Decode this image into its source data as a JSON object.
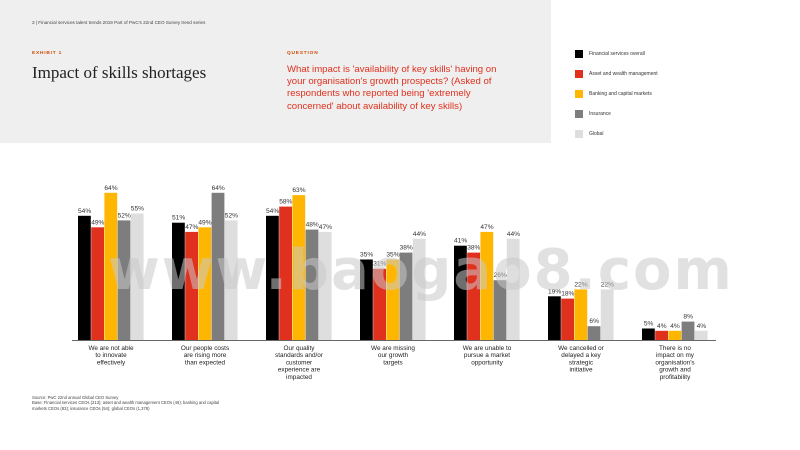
{
  "header": {
    "page_line": "3 | Financial services talent trends 2019 Part of PwC's 22nd CEO Survey trend series",
    "exhibit_label": "EXHIBIT 1",
    "title": "Impact of skills shortages",
    "question_label": "QUESTION",
    "question_text": "What impact is 'availability of key skills' having on your organisation's growth prospects? (Asked of respondents who reported being 'extremely concerned' about availability of key skills)"
  },
  "colors": {
    "header_bg": "#efefef",
    "accent": "#d04a02"
  },
  "chart_data": {
    "type": "bar",
    "title": "Impact of skills shortages",
    "xlabel": "",
    "ylabel": "",
    "ylim": [
      0,
      70
    ],
    "grid": false,
    "legend_position": "top-right",
    "categories": [
      "We are not able to innovate effectively",
      "Our people costs are rising more than expected",
      "Our quality standards and/or customer experience are impacted",
      "We are missing our growth targets",
      "We are unable to pursue a market opportunity",
      "We cancelled or delayed a key strategic initiative",
      "There is no impact on my organisation's growth and profitability"
    ],
    "series": [
      {
        "name": "Financial services overall",
        "color": "#000000",
        "values": [
          54,
          51,
          54,
          35,
          41,
          19,
          5
        ]
      },
      {
        "name": "Asset and wealth management",
        "color": "#e0301e",
        "values": [
          49,
          47,
          58,
          31,
          38,
          18,
          4
        ]
      },
      {
        "name": "Banking and capital markets",
        "color": "#ffb600",
        "values": [
          64,
          49,
          63,
          35,
          47,
          22,
          4
        ]
      },
      {
        "name": "Insurance",
        "color": "#7d7d7d",
        "values": [
          52,
          64,
          48,
          38,
          26,
          6,
          8
        ]
      },
      {
        "name": "Global",
        "color": "#dedede",
        "values": [
          55,
          52,
          47,
          44,
          44,
          22,
          4
        ]
      }
    ]
  },
  "source": {
    "line1": "Source: PwC 22nd annual Global CEO Survey",
    "line2": "Base: Financial services CEOs (213); asset and wealth management CEOs (46); banking and capital markets CEOs (83); insurance CEOs (54); global CEOs (1,378)"
  },
  "watermark": "www.baogao8.com"
}
